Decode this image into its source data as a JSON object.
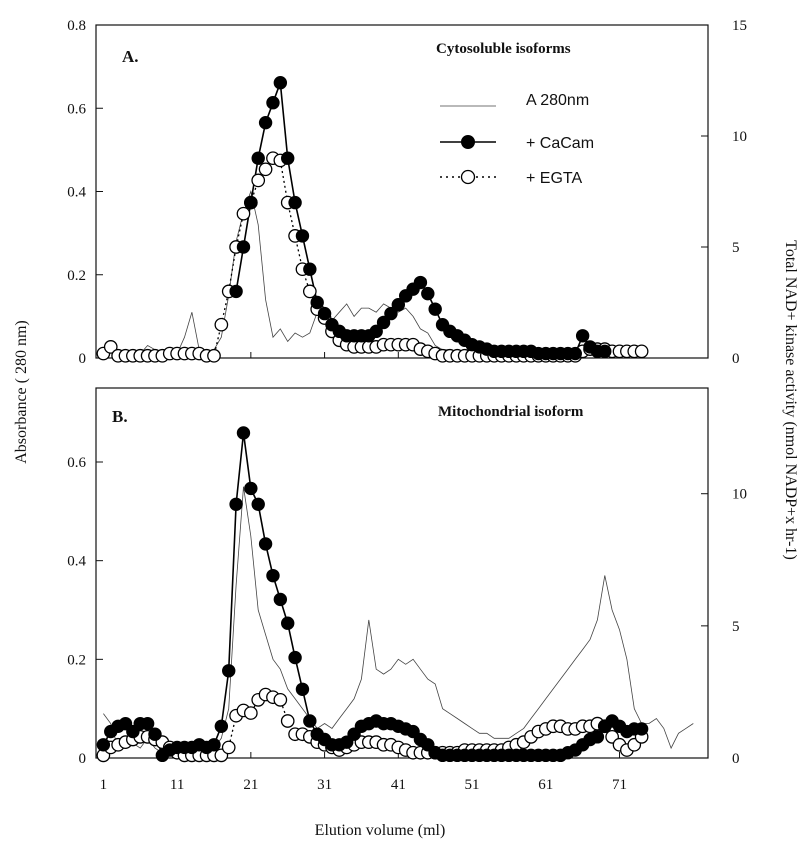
{
  "figure": {
    "left_axis_label": "Absorbance ( 280 nm)",
    "right_axis_label": "Total NAD+ kinase activity  (nmol NADP+x hr-1)",
    "x_axis_label": "Elution volume (ml)"
  },
  "legend": {
    "a280": "A 280nm",
    "cacam": "+ CaCam",
    "egta": "+ EGTA"
  },
  "chart_data": [
    {
      "type": "line",
      "panel_label": "A.",
      "title": "Cytosoluble isoforms",
      "xlim": [
        0,
        83
      ],
      "ylim_left": [
        0,
        0.8
      ],
      "ylim_right": [
        0,
        15
      ],
      "x_ticks": [
        1,
        11,
        21,
        31,
        41,
        51,
        61,
        71
      ],
      "y_ticks_left": [
        "0",
        "0.2",
        "0.4",
        "0.6",
        "0.8"
      ],
      "y_ticks_right": [
        "0",
        "5",
        "10",
        "15"
      ],
      "legend_position": "top-right",
      "series": [
        {
          "name": "A 280nm",
          "axis": "left",
          "style": "thin-line",
          "color": "#444444",
          "x": [
            1,
            2,
            3,
            4,
            5,
            6,
            7,
            8,
            9,
            10,
            11,
            12,
            13,
            14,
            15,
            16,
            17,
            18,
            19,
            20,
            21,
            22,
            23,
            24,
            25,
            26,
            27,
            28,
            29,
            30,
            31,
            32,
            33,
            34,
            35,
            36,
            37,
            38,
            39,
            40,
            41,
            42,
            43,
            44,
            45,
            46,
            47,
            48,
            49,
            50,
            51,
            52,
            53,
            54,
            55,
            56,
            57,
            58,
            59,
            60,
            61,
            62,
            63,
            64,
            65,
            66,
            67,
            68,
            69,
            70,
            71,
            72,
            73,
            74
          ],
          "y": [
            0.01,
            0.02,
            0.01,
            0.01,
            0.01,
            0.01,
            0.03,
            0.02,
            0.01,
            0.02,
            0.01,
            0.05,
            0.11,
            0.02,
            0.01,
            0.02,
            0.05,
            0.15,
            0.28,
            0.35,
            0.4,
            0.32,
            0.14,
            0.05,
            0.07,
            0.04,
            0.06,
            0.05,
            0.06,
            0.11,
            0.1,
            0.09,
            0.11,
            0.13,
            0.1,
            0.12,
            0.12,
            0.11,
            0.13,
            0.12,
            0.11,
            0.12,
            0.1,
            0.07,
            0.06,
            0.03,
            0.02,
            0.02,
            0.01,
            0.01,
            0.02,
            0.01,
            0.01,
            0.01,
            0.01,
            0.02,
            0.01,
            0.01,
            0.01,
            0.01,
            0.01,
            0.01,
            0.01,
            0.01,
            0.01,
            0.02,
            0.01,
            0.01,
            0.02,
            0.01,
            0.01,
            0.01,
            0.01,
            0.01
          ]
        },
        {
          "name": "+ CaCam",
          "axis": "right",
          "style": "filled-circle-solid",
          "color": "#000000",
          "x": [
            19,
            20,
            21,
            22,
            23,
            24,
            25,
            26,
            27,
            28,
            29,
            30,
            31,
            32,
            33,
            34,
            35,
            36,
            37,
            38,
            39,
            40,
            41,
            42,
            43,
            44,
            45,
            46,
            47,
            48,
            49,
            50,
            51,
            52,
            53,
            54,
            55,
            56,
            57,
            58,
            59,
            60,
            61,
            62,
            63,
            64,
            65,
            66,
            67,
            68,
            69
          ],
          "y": [
            3.0,
            5.0,
            7.0,
            9.0,
            10.6,
            11.5,
            12.4,
            9.0,
            7.0,
            5.5,
            4.0,
            2.5,
            2.0,
            1.5,
            1.2,
            1.0,
            1.0,
            1.0,
            1.0,
            1.2,
            1.6,
            2.0,
            2.4,
            2.8,
            3.1,
            3.4,
            2.9,
            2.2,
            1.5,
            1.2,
            1.0,
            0.8,
            0.6,
            0.5,
            0.4,
            0.3,
            0.3,
            0.3,
            0.3,
            0.3,
            0.3,
            0.2,
            0.2,
            0.2,
            0.2,
            0.2,
            0.2,
            1.0,
            0.5,
            0.3,
            0.3
          ]
        },
        {
          "name": "+ EGTA",
          "axis": "right",
          "style": "open-circle-dotted",
          "color": "#000000",
          "x": [
            1,
            2,
            3,
            4,
            5,
            6,
            7,
            8,
            9,
            10,
            11,
            12,
            13,
            14,
            15,
            16,
            17,
            18,
            19,
            20,
            21,
            22,
            23,
            24,
            25,
            26,
            27,
            28,
            29,
            30,
            31,
            32,
            33,
            34,
            35,
            36,
            37,
            38,
            39,
            40,
            41,
            42,
            43,
            44,
            45,
            46,
            47,
            48,
            49,
            50,
            51,
            52,
            53,
            54,
            55,
            56,
            57,
            58,
            59,
            60,
            61,
            62,
            63,
            64,
            65,
            66,
            67,
            68,
            69,
            70,
            71,
            72,
            73,
            74
          ],
          "y": [
            0.2,
            0.5,
            0.1,
            0.1,
            0.1,
            0.1,
            0.1,
            0.1,
            0.1,
            0.2,
            0.2,
            0.2,
            0.2,
            0.2,
            0.1,
            0.1,
            1.5,
            3.0,
            5.0,
            6.5,
            7.0,
            8.0,
            8.5,
            9.0,
            8.9,
            7.0,
            5.5,
            4.0,
            3.0,
            2.2,
            1.8,
            1.2,
            0.8,
            0.6,
            0.5,
            0.5,
            0.5,
            0.5,
            0.6,
            0.6,
            0.6,
            0.6,
            0.6,
            0.4,
            0.3,
            0.2,
            0.1,
            0.1,
            0.1,
            0.1,
            0.1,
            0.1,
            0.1,
            0.1,
            0.1,
            0.1,
            0.1,
            0.1,
            0.1,
            0.1,
            0.1,
            0.1,
            0.1,
            0.1,
            0.1,
            0.3,
            0.4,
            0.4,
            0.4,
            0.3,
            0.3,
            0.3,
            0.3,
            0.3
          ]
        }
      ]
    },
    {
      "type": "line",
      "panel_label": "B.",
      "title": "Mitochondrial isoform",
      "xlim": [
        0,
        83
      ],
      "ylim_left": [
        0,
        0.75
      ],
      "ylim_right": [
        0,
        14
      ],
      "x_ticks": [
        1,
        11,
        21,
        31,
        41,
        51,
        61,
        71
      ],
      "y_ticks_left": [
        "0",
        "0.2",
        "0.4",
        "0.6"
      ],
      "y_ticks_right": [
        "0",
        "5",
        "10"
      ],
      "series": [
        {
          "name": "A 280nm",
          "axis": "left",
          "style": "thin-line",
          "color": "#444444",
          "x": [
            1,
            2,
            3,
            4,
            5,
            6,
            7,
            8,
            9,
            10,
            11,
            12,
            13,
            14,
            15,
            16,
            17,
            18,
            19,
            20,
            21,
            22,
            23,
            24,
            25,
            26,
            27,
            28,
            29,
            30,
            31,
            32,
            33,
            34,
            35,
            36,
            37,
            38,
            39,
            40,
            41,
            42,
            43,
            44,
            45,
            46,
            47,
            48,
            49,
            50,
            51,
            52,
            53,
            54,
            55,
            56,
            57,
            58,
            59,
            60,
            61,
            62,
            63,
            64,
            65,
            66,
            67,
            68,
            69,
            70,
            71,
            72,
            73,
            74,
            75,
            76,
            77,
            78,
            79,
            80,
            81
          ],
          "y": [
            0.09,
            0.07,
            0.02,
            0.03,
            0.03,
            0.02,
            0.04,
            0.02,
            0.01,
            0.03,
            0.02,
            0.01,
            0.02,
            0.03,
            0.02,
            0.02,
            0.04,
            0.1,
            0.35,
            0.55,
            0.45,
            0.3,
            0.25,
            0.2,
            0.18,
            0.14,
            0.12,
            0.1,
            0.08,
            0.06,
            0.07,
            0.06,
            0.08,
            0.1,
            0.12,
            0.16,
            0.28,
            0.18,
            0.17,
            0.18,
            0.2,
            0.19,
            0.2,
            0.18,
            0.16,
            0.15,
            0.1,
            0.09,
            0.08,
            0.07,
            0.06,
            0.05,
            0.05,
            0.04,
            0.04,
            0.04,
            0.05,
            0.06,
            0.08,
            0.1,
            0.12,
            0.14,
            0.16,
            0.18,
            0.2,
            0.22,
            0.24,
            0.28,
            0.37,
            0.3,
            0.26,
            0.2,
            0.1,
            0.07,
            0.07,
            0.08,
            0.06,
            0.02,
            0.05,
            0.06,
            0.07
          ]
        },
        {
          "name": "+ CaCam",
          "axis": "right",
          "style": "filled-circle-solid",
          "color": "#000000",
          "x": [
            1,
            2,
            3,
            4,
            5,
            6,
            7,
            8,
            9,
            10,
            11,
            12,
            13,
            14,
            15,
            16,
            17,
            18,
            19,
            20,
            21,
            22,
            23,
            24,
            25,
            26,
            27,
            28,
            29,
            30,
            31,
            32,
            33,
            34,
            35,
            36,
            37,
            38,
            39,
            40,
            41,
            42,
            43,
            44,
            45,
            46,
            47,
            48,
            49,
            50,
            51,
            52,
            53,
            54,
            55,
            56,
            57,
            58,
            59,
            60,
            61,
            62,
            63,
            64,
            65,
            66,
            67,
            68,
            69,
            70,
            71,
            72,
            73,
            74
          ],
          "y": [
            0.5,
            1.0,
            1.2,
            1.3,
            1.0,
            1.3,
            1.3,
            0.9,
            0.1,
            0.3,
            0.4,
            0.4,
            0.4,
            0.5,
            0.4,
            0.5,
            1.2,
            3.3,
            9.6,
            12.3,
            10.2,
            9.6,
            8.1,
            6.9,
            6.0,
            5.1,
            3.8,
            2.6,
            1.4,
            0.9,
            0.7,
            0.5,
            0.5,
            0.6,
            0.9,
            1.2,
            1.3,
            1.4,
            1.3,
            1.3,
            1.2,
            1.1,
            1.0,
            0.7,
            0.5,
            0.2,
            0.1,
            0.1,
            0.1,
            0.1,
            0.1,
            0.1,
            0.1,
            0.1,
            0.1,
            0.1,
            0.1,
            0.1,
            0.1,
            0.1,
            0.1,
            0.1,
            0.1,
            0.2,
            0.3,
            0.5,
            0.7,
            0.8,
            1.2,
            1.4,
            1.2,
            1.0,
            1.1,
            1.1
          ]
        },
        {
          "name": "+ EGTA",
          "axis": "right",
          "style": "open-circle-dotted",
          "color": "#000000",
          "x": [
            1,
            2,
            3,
            4,
            5,
            6,
            7,
            8,
            9,
            10,
            11,
            12,
            13,
            14,
            15,
            16,
            17,
            18,
            19,
            20,
            21,
            22,
            23,
            24,
            25,
            26,
            27,
            28,
            29,
            30,
            31,
            32,
            33,
            34,
            35,
            36,
            37,
            38,
            39,
            40,
            41,
            42,
            43,
            44,
            45,
            46,
            47,
            48,
            49,
            50,
            51,
            52,
            53,
            54,
            55,
            56,
            57,
            58,
            59,
            60,
            61,
            62,
            63,
            64,
            65,
            66,
            67,
            68,
            69,
            70,
            71,
            72,
            73,
            74
          ],
          "y": [
            0.1,
            0.4,
            0.5,
            0.6,
            0.7,
            0.8,
            0.8,
            0.7,
            0.6,
            0.4,
            0.2,
            0.1,
            0.1,
            0.1,
            0.1,
            0.1,
            0.1,
            0.4,
            1.6,
            1.8,
            1.7,
            2.2,
            2.4,
            2.3,
            2.2,
            1.4,
            0.9,
            0.9,
            0.8,
            0.6,
            0.5,
            0.4,
            0.3,
            0.4,
            0.5,
            0.6,
            0.6,
            0.6,
            0.5,
            0.5,
            0.4,
            0.3,
            0.2,
            0.2,
            0.2,
            0.2,
            0.2,
            0.2,
            0.2,
            0.3,
            0.3,
            0.3,
            0.3,
            0.3,
            0.3,
            0.4,
            0.5,
            0.6,
            0.8,
            1.0,
            1.1,
            1.2,
            1.2,
            1.1,
            1.1,
            1.2,
            1.2,
            1.3,
            1.2,
            0.8,
            0.5,
            0.3,
            0.5,
            0.8
          ]
        }
      ]
    }
  ]
}
